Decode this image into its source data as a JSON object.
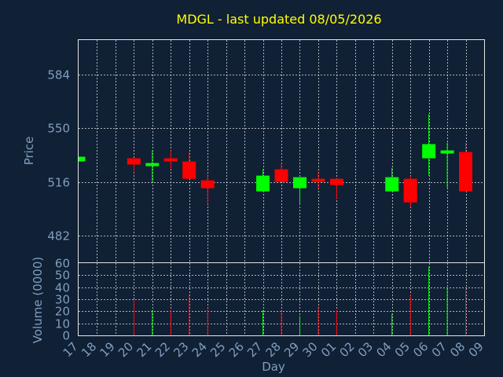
{
  "chart_data": {
    "type": "candlestick",
    "title": "MDGL - last updated 08/05/2026",
    "xlabel": "Day",
    "colors": {
      "background": "#102035",
      "title": "#ffff00",
      "axis_text": "#7f9fbf",
      "frame": "#e6e6e6",
      "up": "#00ff00",
      "down": "#ff0000"
    },
    "x_ticks": [
      "17",
      "18",
      "19",
      "20",
      "21",
      "22",
      "23",
      "24",
      "25",
      "26",
      "27",
      "28",
      "29",
      "30",
      "01",
      "02",
      "03",
      "04",
      "05",
      "06",
      "07",
      "08",
      "09"
    ],
    "price_panel": {
      "ylabel": "Price",
      "ylim": [
        465,
        606
      ],
      "y_ticks": [
        482,
        516,
        550,
        584
      ],
      "grid": true
    },
    "volume_panel": {
      "ylabel": "Volume (0000)",
      "ylim": [
        0,
        60
      ],
      "y_ticks": [
        0,
        10,
        20,
        30,
        40,
        50,
        60
      ],
      "grid": true
    },
    "candles": [
      {
        "day": "17",
        "open": 529,
        "close": 532,
        "high": 532,
        "low": 529,
        "volume": 0
      },
      {
        "day": "20",
        "open": 531,
        "close": 527,
        "high": 531,
        "low": 522,
        "volume": 30
      },
      {
        "day": "21",
        "open": 526,
        "close": 528,
        "high": 536,
        "low": 516,
        "volume": 21
      },
      {
        "day": "22",
        "open": 531,
        "close": 529,
        "high": 536,
        "low": 524,
        "volume": 21
      },
      {
        "day": "23",
        "open": 529,
        "close": 518,
        "high": 535,
        "low": 518,
        "volume": 34
      },
      {
        "day": "24",
        "open": 517,
        "close": 512,
        "high": 521,
        "low": 502,
        "volume": 23
      },
      {
        "day": "27",
        "open": 510,
        "close": 520,
        "high": 524,
        "low": 510,
        "volume": 21
      },
      {
        "day": "28",
        "open": 524,
        "close": 516,
        "high": 528,
        "low": 516,
        "volume": 21
      },
      {
        "day": "29",
        "open": 512,
        "close": 519,
        "high": 519,
        "low": 502,
        "volume": 16
      },
      {
        "day": "30",
        "open": 518,
        "close": 516,
        "high": 523,
        "low": 511,
        "volume": 24
      },
      {
        "day": "01",
        "open": 518,
        "close": 514,
        "high": 518,
        "low": 505,
        "volume": 21
      },
      {
        "day": "04",
        "open": 510,
        "close": 519,
        "high": 525,
        "low": 510,
        "volume": 18
      },
      {
        "day": "05",
        "open": 518,
        "close": 503,
        "high": 520,
        "low": 500,
        "volume": 34
      },
      {
        "day": "06",
        "open": 531,
        "close": 540,
        "high": 559,
        "low": 520,
        "volume": 57
      },
      {
        "day": "07",
        "open": 534,
        "close": 536,
        "high": 541,
        "low": 512,
        "volume": 40
      },
      {
        "day": "08",
        "open": 535,
        "close": 510,
        "high": 541,
        "low": 510,
        "volume": 38
      }
    ]
  }
}
